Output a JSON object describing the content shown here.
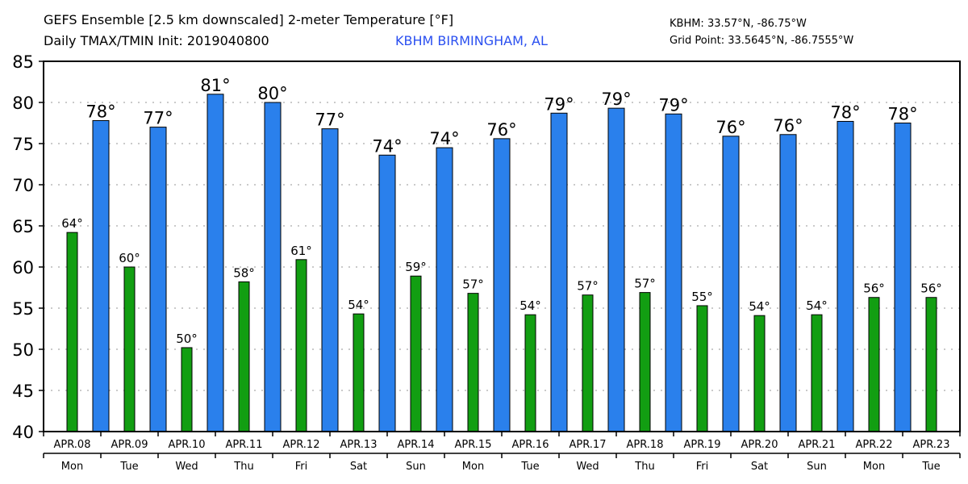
{
  "header": {
    "title_line1": "GEFS Ensemble [2.5 km downscaled] 2-meter Temperature [°F]",
    "title_line2": "Daily TMAX/TMIN Init: 2019040800",
    "location": "KBHM BIRMINGHAM, AL",
    "station_coords": "KBHM: 33.57°N, -86.75°W",
    "grid_coords": "Grid Point: 33.5645°N, -86.7555°W"
  },
  "colors": {
    "tmax": "#2a80ec",
    "tmin": "#129e12",
    "location_text": "#2a4ff0"
  },
  "chart_data": {
    "type": "bar",
    "title": "GEFS Ensemble [2.5 km downscaled] 2-meter Temperature [°F]",
    "subtitle": "Daily TMAX/TMIN Init: 2019040800",
    "xlabel": "",
    "ylabel": "",
    "ylim": [
      40,
      85
    ],
    "yticks": [
      40,
      45,
      50,
      55,
      60,
      65,
      70,
      75,
      80,
      85
    ],
    "grid": true,
    "categories": [
      "APR.08",
      "APR.09",
      "APR.10",
      "APR.11",
      "APR.12",
      "APR.13",
      "APR.14",
      "APR.15",
      "APR.16",
      "APR.17",
      "APR.18",
      "APR.19",
      "APR.20",
      "APR.21",
      "APR.22",
      "APR.23"
    ],
    "weekdays": [
      "Mon",
      "Tue",
      "Wed",
      "Thu",
      "Fri",
      "Sat",
      "Sun",
      "Mon",
      "Tue",
      "Wed",
      "Thu",
      "Fri",
      "Sat",
      "Sun",
      "Mon",
      "Tue"
    ],
    "series": [
      {
        "name": "TMIN",
        "values": [
          64.2,
          60.0,
          50.2,
          58.2,
          60.9,
          54.3,
          58.9,
          56.8,
          54.2,
          56.6,
          56.9,
          55.3,
          54.1,
          54.2,
          56.3,
          56.3
        ],
        "labels": [
          "64°",
          "60°",
          "50°",
          "58°",
          "61°",
          "54°",
          "59°",
          "57°",
          "54°",
          "57°",
          "57°",
          "55°",
          "54°",
          "54°",
          "56°",
          "56°"
        ]
      },
      {
        "name": "TMAX",
        "values": [
          77.8,
          77.0,
          81.0,
          80.0,
          76.8,
          73.6,
          74.5,
          75.6,
          78.7,
          79.3,
          78.6,
          75.9,
          76.1,
          77.7,
          77.5
        ],
        "labels": [
          "78°",
          "77°",
          "81°",
          "80°",
          "77°",
          "74°",
          "74°",
          "76°",
          "79°",
          "79°",
          "79°",
          "76°",
          "76°",
          "78°",
          "78°"
        ]
      }
    ]
  }
}
